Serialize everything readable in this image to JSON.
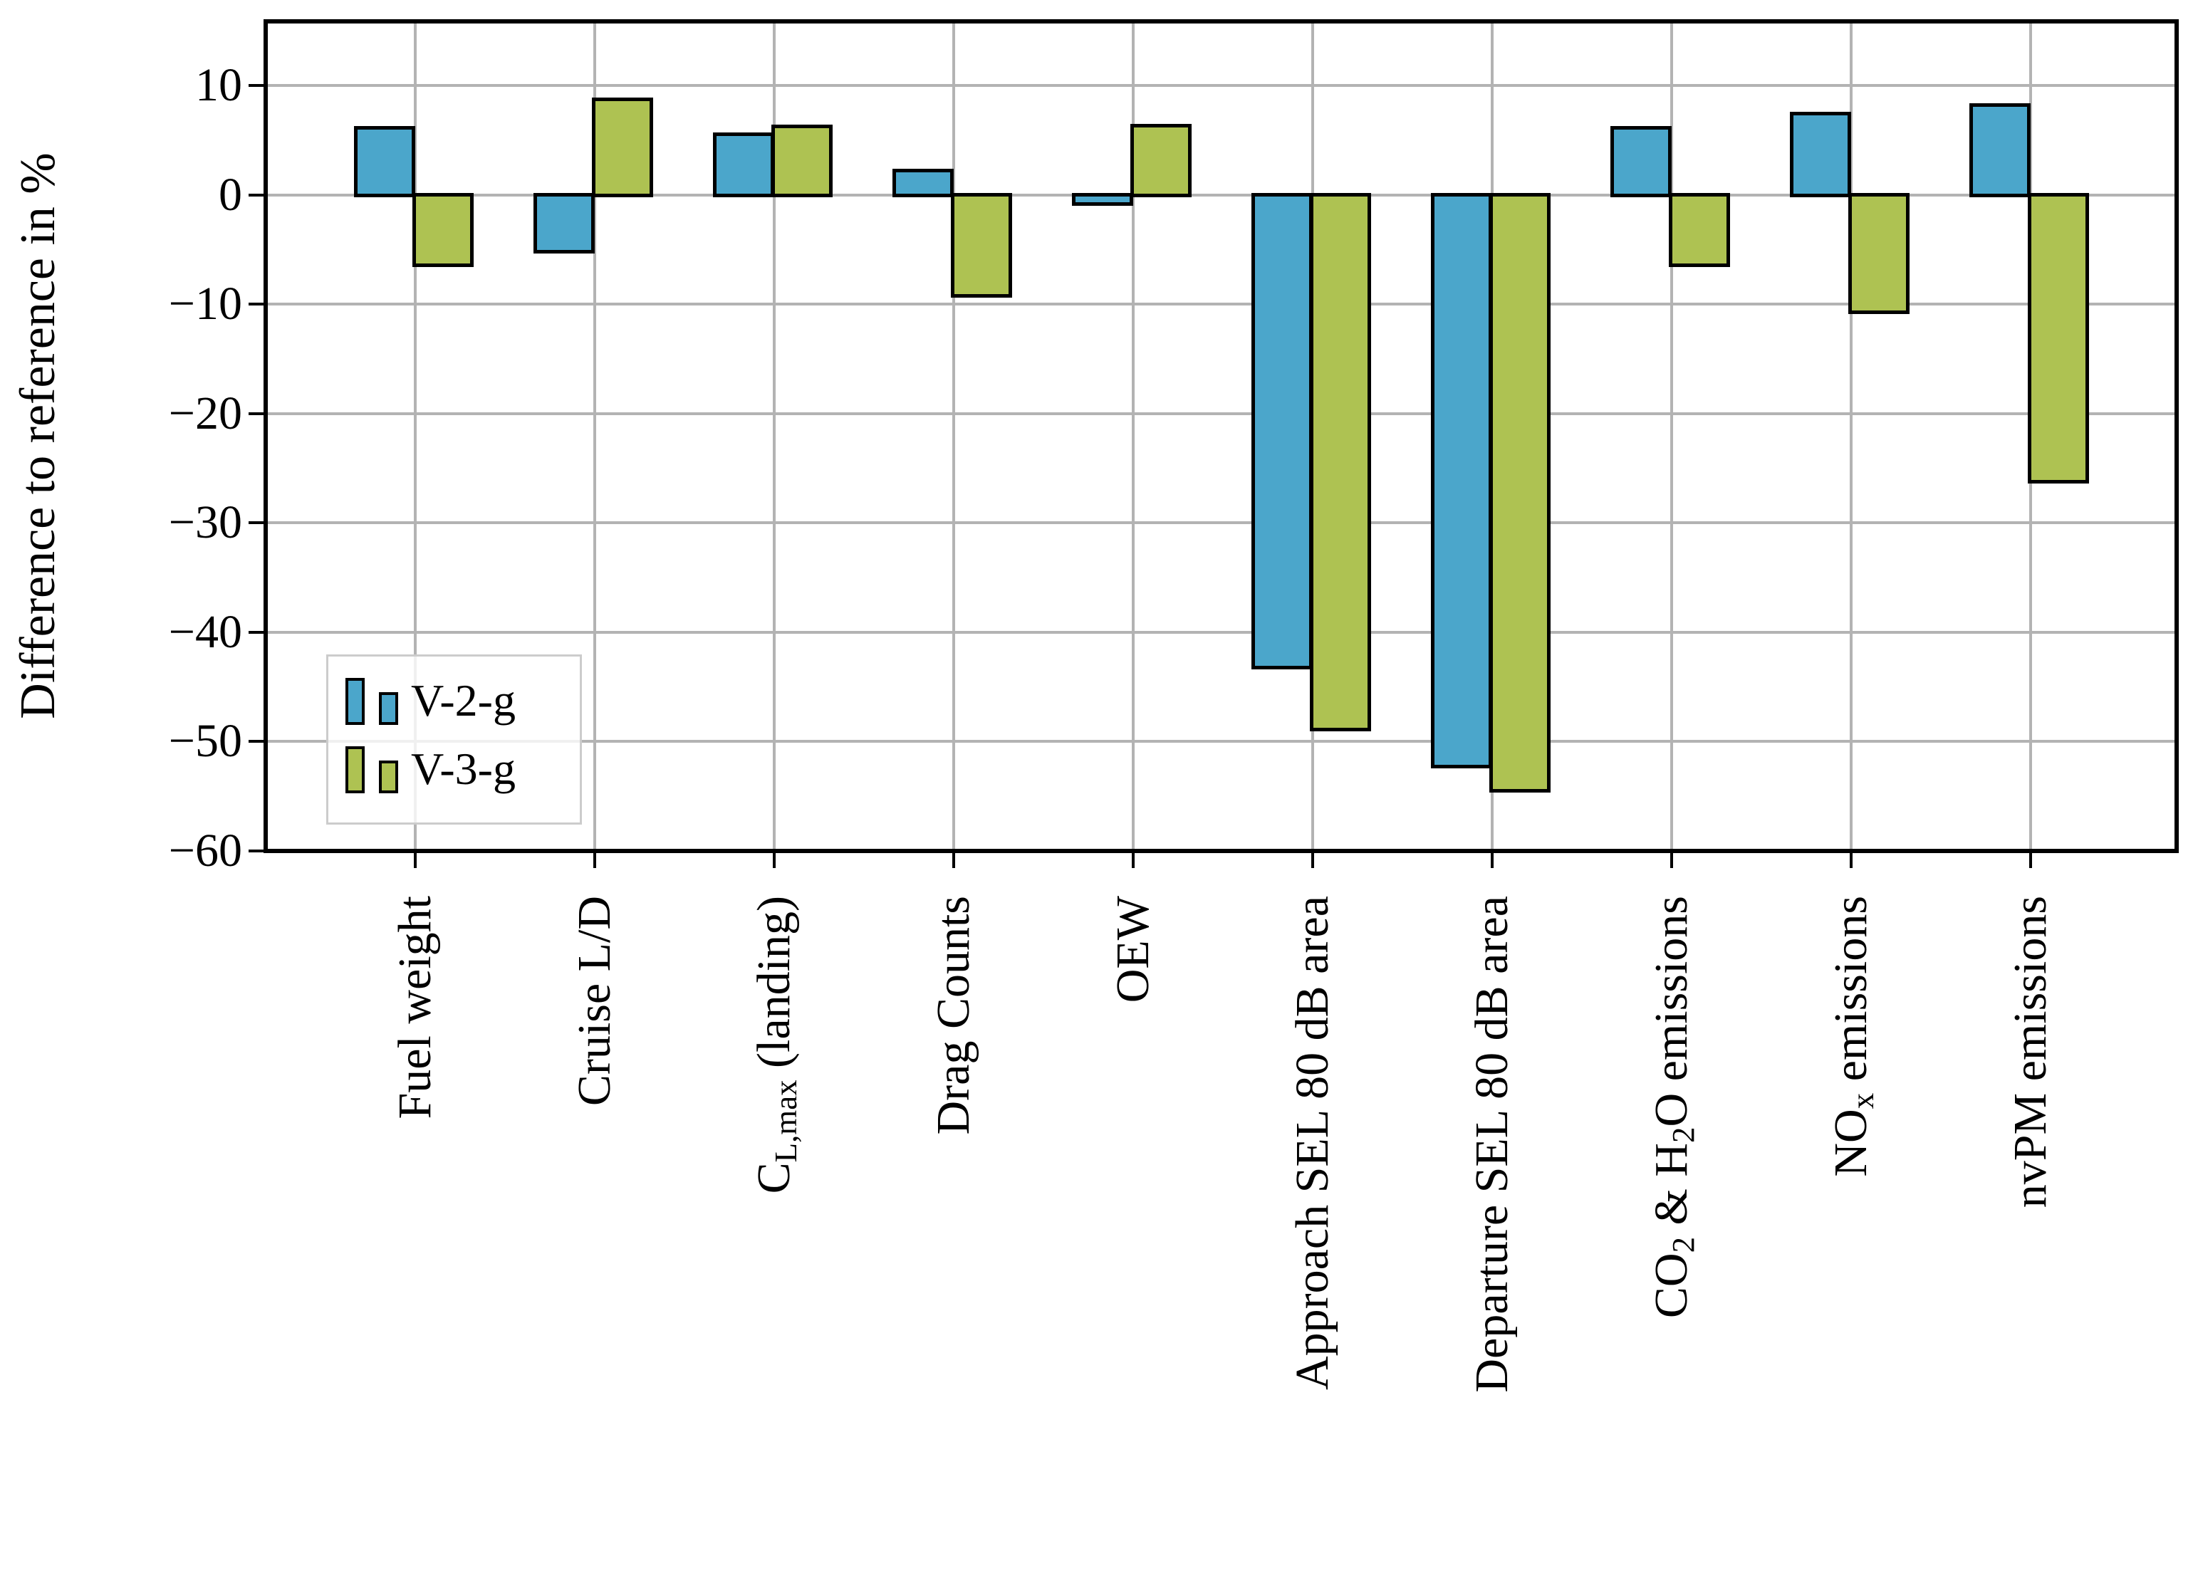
{
  "chart_data": {
    "type": "bar",
    "title": "",
    "xlabel": "",
    "ylabel": "Difference to reference in %",
    "ylim": [
      -60,
      15.9
    ],
    "grid": true,
    "legend_position": "lower left",
    "y_ticks": [
      10,
      0,
      -10,
      -20,
      -30,
      -40,
      -50,
      -60
    ],
    "y_tick_labels": [
      "10",
      "0",
      "−10",
      "−20",
      "−30",
      "−40",
      "−50",
      "−60"
    ],
    "categories": [
      "Fuel weight",
      "Cruise L/D",
      "C_L,max (landing)",
      "Drag Counts",
      "OEW",
      "Approach SEL 80 dB area",
      "Departure SEL 80 dB area",
      "CO2 & H2O emissions",
      "NOx emissions",
      "nvPM emissions"
    ],
    "x_labels_rich": [
      [
        {
          "t": "Fuel weight"
        }
      ],
      [
        {
          "t": "Cruise L/D"
        }
      ],
      [
        {
          "t": "C"
        },
        {
          "t": "L,max",
          "sub": true
        },
        {
          "t": " (landing)"
        }
      ],
      [
        {
          "t": "Drag Counts"
        }
      ],
      [
        {
          "t": "OEW"
        }
      ],
      [
        {
          "t": "Approach SEL 80 dB area"
        }
      ],
      [
        {
          "t": "Departure SEL 80 dB area"
        }
      ],
      [
        {
          "t": "CO"
        },
        {
          "t": "2",
          "sub": true
        },
        {
          "t": " & H"
        },
        {
          "t": "2",
          "sub": true
        },
        {
          "t": "O emissions"
        }
      ],
      [
        {
          "t": "NO"
        },
        {
          "t": "x",
          "sub": true
        },
        {
          "t": " emissions"
        }
      ],
      [
        {
          "t": "nvPM emissions"
        }
      ]
    ],
    "series": [
      {
        "name": "V-2-g",
        "color": "#4BA6CB",
        "values": [
          6.3,
          -5.4,
          5.7,
          2.4,
          -1.0,
          -43.4,
          -52.5,
          6.3,
          7.6,
          8.4
        ]
      },
      {
        "name": "V-3-g",
        "color": "#AEC252",
        "values": [
          -6.6,
          8.9,
          6.4,
          -9.4,
          6.5,
          -49.1,
          -54.7,
          -6.6,
          -10.9,
          -26.4
        ]
      }
    ],
    "bar_edge_color": "#000000",
    "grid_color": "#b3b3b3",
    "legend_frame_color": "#cccccc"
  }
}
